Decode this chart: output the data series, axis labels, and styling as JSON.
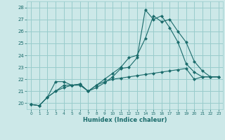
{
  "xlabel": "Humidex (Indice chaleur)",
  "ylabel": "",
  "xlim": [
    -0.5,
    23.5
  ],
  "ylim": [
    19.5,
    28.5
  ],
  "xticks": [
    0,
    1,
    2,
    3,
    4,
    5,
    6,
    7,
    8,
    9,
    10,
    11,
    12,
    13,
    14,
    15,
    16,
    17,
    18,
    19,
    20,
    21,
    22,
    23
  ],
  "yticks": [
    20,
    21,
    22,
    23,
    24,
    25,
    26,
    27,
    28
  ],
  "bg_color": "#cce8e8",
  "grid_color": "#99cccc",
  "line_color": "#1a6b6b",
  "line1_x": [
    0,
    1,
    2,
    3,
    4,
    5,
    6,
    7,
    8,
    9,
    10,
    11,
    12,
    13,
    14,
    15,
    16,
    17,
    18,
    19,
    20,
    21,
    22,
    23
  ],
  "line1_y": [
    19.9,
    19.8,
    20.5,
    21.8,
    21.8,
    21.5,
    21.6,
    21.0,
    21.5,
    21.8,
    22.0,
    22.1,
    22.2,
    22.3,
    22.4,
    22.5,
    22.6,
    22.7,
    22.8,
    22.9,
    22.0,
    22.2,
    22.2,
    22.2
  ],
  "line2_x": [
    0,
    1,
    2,
    3,
    4,
    5,
    6,
    7,
    8,
    9,
    10,
    11,
    12,
    13,
    14,
    15,
    16,
    17,
    18,
    19,
    20,
    21,
    22,
    23
  ],
  "line2_y": [
    19.9,
    19.8,
    20.5,
    21.0,
    21.5,
    21.5,
    21.6,
    21.0,
    21.3,
    21.7,
    22.2,
    22.9,
    23.0,
    23.8,
    27.8,
    27.0,
    27.3,
    26.3,
    25.1,
    23.3,
    22.6,
    22.2,
    22.2,
    22.2
  ],
  "line3_x": [
    0,
    1,
    2,
    3,
    4,
    5,
    6,
    7,
    8,
    9,
    10,
    11,
    12,
    13,
    14,
    15,
    16,
    17,
    18,
    19,
    20,
    21,
    22,
    23
  ],
  "line3_y": [
    19.9,
    19.8,
    20.5,
    21.0,
    21.3,
    21.5,
    21.5,
    21.0,
    21.5,
    22.0,
    22.5,
    23.0,
    23.8,
    24.0,
    25.4,
    27.3,
    26.8,
    27.0,
    26.0,
    25.1,
    23.5,
    22.7,
    22.2,
    22.2
  ],
  "marker_size": 2.5
}
